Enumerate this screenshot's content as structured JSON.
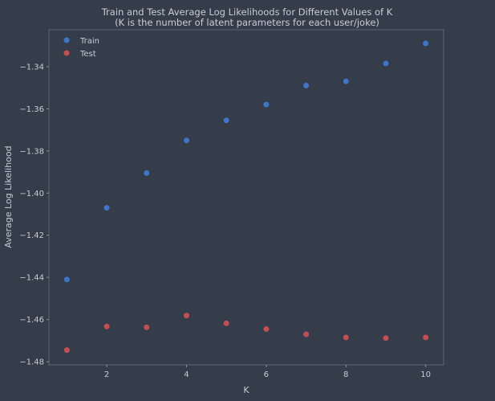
{
  "chart_data": {
    "type": "scatter",
    "title": "Train and Test Average Log Likelihoods for Different Values of K",
    "subtitle": "(K is the number of latent parameters for each user/joke)",
    "xlabel": "K",
    "ylabel": "Average Log Likelihood",
    "xlim": [
      0.55,
      10.45
    ],
    "ylim": [
      -1.4815,
      -1.3225
    ],
    "x_ticks": [
      2,
      4,
      6,
      8,
      10
    ],
    "x_tick_labels": [
      "2",
      "4",
      "6",
      "8",
      "10"
    ],
    "y_ticks": [
      -1.34,
      -1.36,
      -1.38,
      -1.4,
      -1.42,
      -1.44,
      -1.46,
      -1.48
    ],
    "y_tick_labels": [
      "−1.34",
      "−1.36",
      "−1.38",
      "−1.40",
      "−1.42",
      "−1.44",
      "−1.46",
      "−1.48"
    ],
    "grid": false,
    "legend_position": "top-left",
    "x": [
      1,
      2,
      3,
      4,
      5,
      6,
      7,
      8,
      9,
      10
    ],
    "series": [
      {
        "name": "Train",
        "color": "#3f75c8",
        "values": [
          -1.441,
          -1.407,
          -1.3905,
          -1.375,
          -1.3655,
          -1.358,
          -1.349,
          -1.347,
          -1.3385,
          -1.329
        ]
      },
      {
        "name": "Test",
        "color": "#c44e52",
        "values": [
          -1.4745,
          -1.4633,
          -1.4637,
          -1.4581,
          -1.4618,
          -1.4645,
          -1.467,
          -1.4685,
          -1.4688,
          -1.4685
        ]
      }
    ]
  }
}
